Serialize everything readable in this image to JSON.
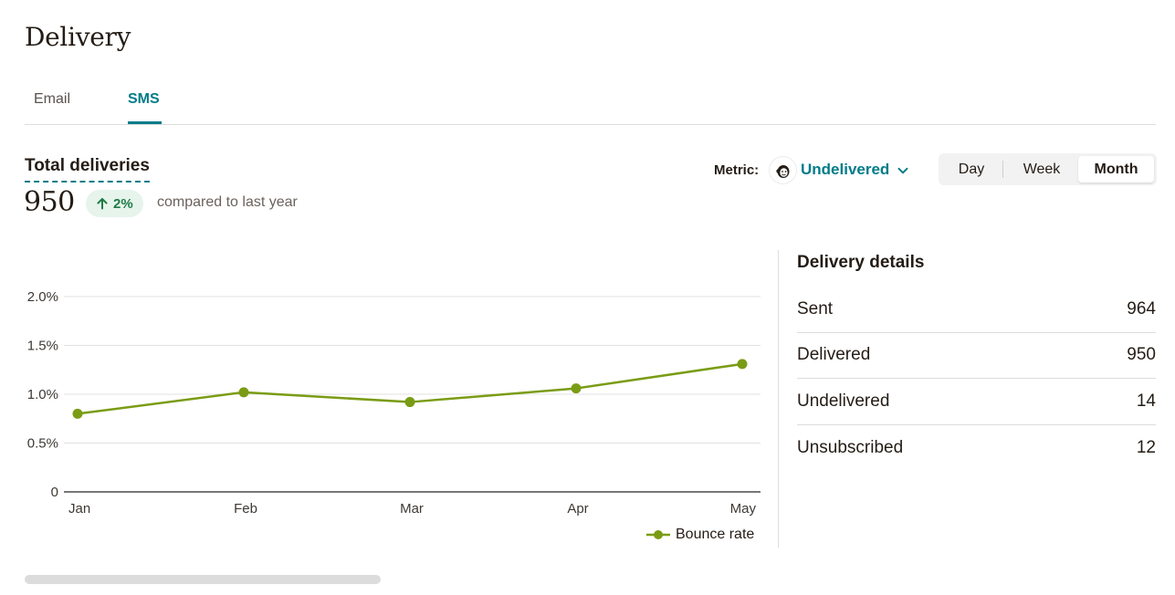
{
  "page": {
    "title": "Delivery"
  },
  "tabs": [
    {
      "label": "Email",
      "active": false
    },
    {
      "label": "SMS",
      "active": true
    }
  ],
  "kpi": {
    "label": "Total deliveries",
    "value": "950",
    "change": "2%",
    "change_direction": "up",
    "compare_text": "compared to last year"
  },
  "metric": {
    "label": "Metric:",
    "selected": "Undelivered"
  },
  "period": {
    "options": [
      "Day",
      "Week",
      "Month"
    ],
    "selected": "Month"
  },
  "chart_data": {
    "type": "line",
    "categories": [
      "Jan",
      "Feb",
      "Mar",
      "Apr",
      "May"
    ],
    "series": [
      {
        "name": "Bounce rate",
        "values": [
          0.8,
          1.02,
          0.92,
          1.06,
          1.31
        ],
        "color": "#7a9c14"
      }
    ],
    "y_ticks": [
      "2.0%",
      "1.5%",
      "1.0%",
      "0.5%",
      "0"
    ],
    "ylim": [
      0,
      2.0
    ],
    "grid": true,
    "legend": "bottom-right"
  },
  "details": {
    "title": "Delivery details",
    "rows": [
      {
        "label": "Sent",
        "value": "964"
      },
      {
        "label": "Delivered",
        "value": "950"
      },
      {
        "label": "Undelivered",
        "value": "14"
      },
      {
        "label": "Unsubscribed",
        "value": "12"
      }
    ]
  },
  "colors": {
    "accent": "#007c89",
    "series": "#7a9c14",
    "positive": "#1e7b45"
  }
}
